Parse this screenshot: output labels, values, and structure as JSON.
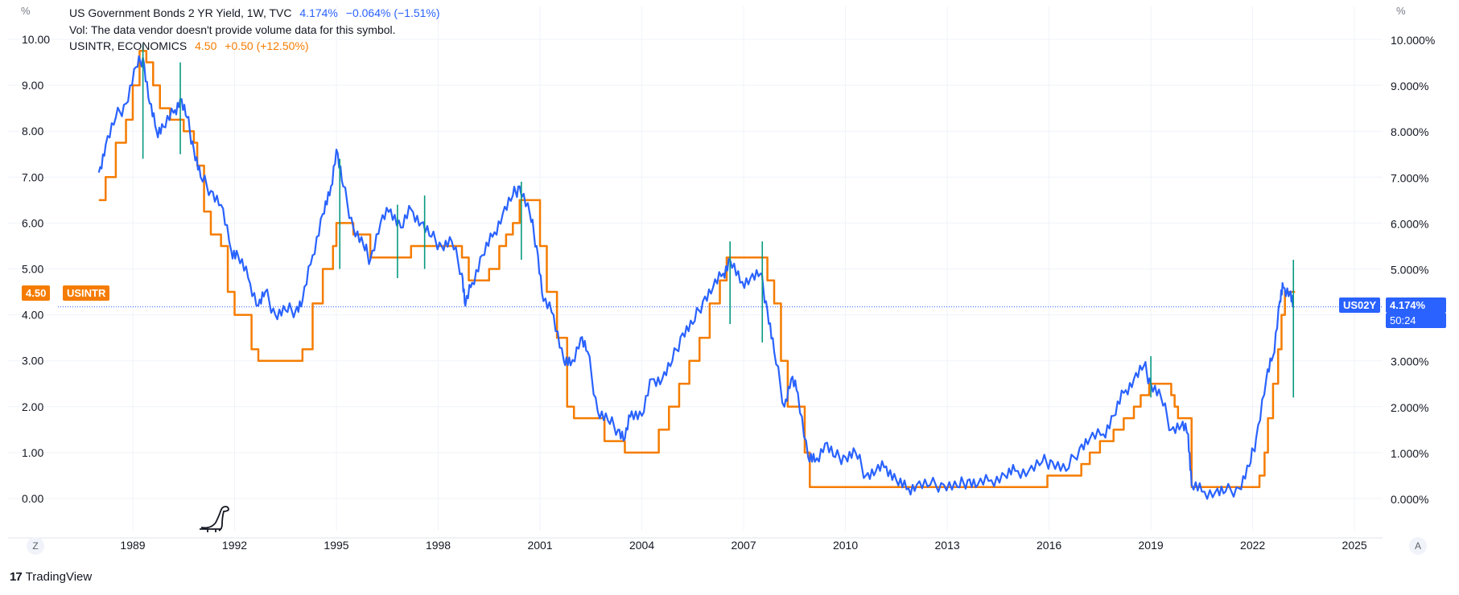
{
  "legend": {
    "line1": {
      "symbol": "US Government Bonds 2 YR Yield, 1W, TVC",
      "value": "4.174%",
      "change": "−0.064% (−1.51%)"
    },
    "line2": {
      "text": "Vol: The data vendor doesn't provide volume data for this symbol."
    },
    "line3": {
      "symbol": "USINTR, ECONOMICS",
      "value": "4.50",
      "change": "+0.50 (+12.50%)"
    }
  },
  "left_axis": {
    "unit": "%",
    "ticks": [
      "10.00",
      "9.00",
      "8.00",
      "7.00",
      "6.00",
      "5.00",
      "4.00",
      "3.00",
      "2.00",
      "1.00",
      "0.00"
    ]
  },
  "right_axis": {
    "unit": "%",
    "ticks": [
      "10.000%",
      "9.000%",
      "8.000%",
      "7.000%",
      "6.000%",
      "5.000%",
      "4.000%",
      "3.000%",
      "2.000%",
      "1.000%",
      "0.000%"
    ]
  },
  "time_axis": {
    "ticks": [
      "1989",
      "1992",
      "1995",
      "1998",
      "2001",
      "2004",
      "2007",
      "2010",
      "2013",
      "2016",
      "2019",
      "2022",
      "2025"
    ]
  },
  "tags": {
    "left_value": "4.50",
    "left_symbol": "USINTR",
    "right_symbol": "US02Y",
    "right_value": "4.174%",
    "right_countdown": "50:24"
  },
  "controls": {
    "zoom_left": "Z",
    "auto_right": "A"
  },
  "brand": "TradingView",
  "colors": {
    "yield": "#2962ff",
    "rate": "#f57c00",
    "volume_bar": "#089981",
    "grid": "#f0f3fa",
    "price_line": "#2962ff"
  },
  "chart_data": {
    "type": "line",
    "xlabel": "",
    "ylabel": "%",
    "ylim": [
      0,
      10
    ],
    "xlim": [
      1986.7,
      2025.4
    ],
    "grid": true,
    "legend_position": "top-left",
    "series": [
      {
        "name": "US Government Bonds 2 YR Yield, 1W, TVC",
        "points": [
          [
            1988.0,
            7.1
          ],
          [
            1988.2,
            7.7
          ],
          [
            1988.5,
            8.3
          ],
          [
            1988.8,
            8.6
          ],
          [
            1989.1,
            9.4
          ],
          [
            1989.3,
            9.6
          ],
          [
            1989.5,
            8.6
          ],
          [
            1989.7,
            8.0
          ],
          [
            1989.9,
            8.1
          ],
          [
            1990.2,
            8.4
          ],
          [
            1990.4,
            8.7
          ],
          [
            1990.6,
            8.3
          ],
          [
            1990.8,
            7.6
          ],
          [
            1991.0,
            7.0
          ],
          [
            1991.3,
            6.7
          ],
          [
            1991.6,
            6.4
          ],
          [
            1991.9,
            5.4
          ],
          [
            1992.1,
            5.3
          ],
          [
            1992.4,
            4.8
          ],
          [
            1992.7,
            4.2
          ],
          [
            1992.9,
            4.5
          ],
          [
            1993.2,
            4.0
          ],
          [
            1993.5,
            4.1
          ],
          [
            1993.8,
            4.1
          ],
          [
            1994.0,
            4.3
          ],
          [
            1994.3,
            5.3
          ],
          [
            1994.6,
            6.2
          ],
          [
            1994.8,
            6.6
          ],
          [
            1995.0,
            7.6
          ],
          [
            1995.2,
            6.8
          ],
          [
            1995.5,
            5.9
          ],
          [
            1995.8,
            5.5
          ],
          [
            1996.0,
            5.2
          ],
          [
            1996.3,
            6.0
          ],
          [
            1996.6,
            6.3
          ],
          [
            1996.9,
            5.9
          ],
          [
            1997.2,
            6.3
          ],
          [
            1997.5,
            6.0
          ],
          [
            1997.8,
            5.7
          ],
          [
            1998.1,
            5.5
          ],
          [
            1998.4,
            5.6
          ],
          [
            1998.7,
            4.9
          ],
          [
            1998.8,
            4.2
          ],
          [
            1999.0,
            4.7
          ],
          [
            1999.3,
            5.3
          ],
          [
            1999.6,
            5.7
          ],
          [
            1999.9,
            6.2
          ],
          [
            2000.2,
            6.6
          ],
          [
            2000.4,
            6.8
          ],
          [
            2000.7,
            6.2
          ],
          [
            2000.9,
            5.5
          ],
          [
            2001.1,
            4.3
          ],
          [
            2001.4,
            4.0
          ],
          [
            2001.7,
            3.0
          ],
          [
            2001.9,
            2.9
          ],
          [
            2002.2,
            3.5
          ],
          [
            2002.4,
            3.2
          ],
          [
            2002.7,
            1.9
          ],
          [
            2003.0,
            1.7
          ],
          [
            2003.3,
            1.5
          ],
          [
            2003.5,
            1.3
          ],
          [
            2003.7,
            1.9
          ],
          [
            2004.0,
            1.8
          ],
          [
            2004.3,
            2.6
          ],
          [
            2004.6,
            2.6
          ],
          [
            2004.9,
            3.0
          ],
          [
            2005.2,
            3.6
          ],
          [
            2005.5,
            3.8
          ],
          [
            2005.8,
            4.3
          ],
          [
            2006.1,
            4.6
          ],
          [
            2006.4,
            4.9
          ],
          [
            2006.6,
            5.2
          ],
          [
            2006.9,
            4.7
          ],
          [
            2007.2,
            4.8
          ],
          [
            2007.5,
            4.9
          ],
          [
            2007.7,
            4.1
          ],
          [
            2007.9,
            3.2
          ],
          [
            2008.2,
            2.0
          ],
          [
            2008.4,
            2.6
          ],
          [
            2008.6,
            2.3
          ],
          [
            2008.9,
            0.9
          ],
          [
            2009.1,
            0.8
          ],
          [
            2009.4,
            1.2
          ],
          [
            2009.7,
            0.9
          ],
          [
            2010.0,
            0.9
          ],
          [
            2010.3,
            1.0
          ],
          [
            2010.6,
            0.5
          ],
          [
            2010.9,
            0.6
          ],
          [
            2011.2,
            0.7
          ],
          [
            2011.5,
            0.4
          ],
          [
            2011.8,
            0.2
          ],
          [
            2012.1,
            0.3
          ],
          [
            2012.5,
            0.3
          ],
          [
            2012.9,
            0.3
          ],
          [
            2013.3,
            0.25
          ],
          [
            2013.6,
            0.4
          ],
          [
            2013.9,
            0.3
          ],
          [
            2014.3,
            0.4
          ],
          [
            2014.7,
            0.5
          ],
          [
            2015.0,
            0.6
          ],
          [
            2015.4,
            0.6
          ],
          [
            2015.8,
            0.8
          ],
          [
            2016.1,
            0.8
          ],
          [
            2016.5,
            0.6
          ],
          [
            2016.9,
            1.1
          ],
          [
            2017.2,
            1.3
          ],
          [
            2017.6,
            1.4
          ],
          [
            2017.9,
            1.8
          ],
          [
            2018.2,
            2.3
          ],
          [
            2018.5,
            2.6
          ],
          [
            2018.8,
            2.9
          ],
          [
            2019.0,
            2.5
          ],
          [
            2019.3,
            2.2
          ],
          [
            2019.6,
            1.5
          ],
          [
            2019.9,
            1.6
          ],
          [
            2020.1,
            1.4
          ],
          [
            2020.2,
            0.3
          ],
          [
            2020.5,
            0.15
          ],
          [
            2020.9,
            0.14
          ],
          [
            2021.2,
            0.15
          ],
          [
            2021.6,
            0.22
          ],
          [
            2021.9,
            0.7
          ],
          [
            2022.1,
            1.3
          ],
          [
            2022.4,
            2.6
          ],
          [
            2022.6,
            3.1
          ],
          [
            2022.8,
            4.3
          ],
          [
            2022.9,
            4.6
          ],
          [
            2023.1,
            4.5
          ],
          [
            2023.2,
            4.17
          ]
        ]
      },
      {
        "name": "USINTR, ECONOMICS",
        "points": [
          [
            1988.0,
            6.5
          ],
          [
            1988.2,
            7.0
          ],
          [
            1988.5,
            7.75
          ],
          [
            1988.8,
            8.25
          ],
          [
            1989.0,
            9.0
          ],
          [
            1989.2,
            9.75
          ],
          [
            1989.4,
            9.5
          ],
          [
            1989.6,
            9.0
          ],
          [
            1989.8,
            8.5
          ],
          [
            1990.1,
            8.25
          ],
          [
            1990.5,
            8.0
          ],
          [
            1990.8,
            7.75
          ],
          [
            1990.9,
            7.25
          ],
          [
            1991.1,
            6.25
          ],
          [
            1991.3,
            5.75
          ],
          [
            1991.6,
            5.5
          ],
          [
            1991.8,
            4.5
          ],
          [
            1992.0,
            4.0
          ],
          [
            1992.5,
            3.25
          ],
          [
            1992.7,
            3.0
          ],
          [
            1994.0,
            3.25
          ],
          [
            1994.3,
            4.25
          ],
          [
            1994.6,
            5.0
          ],
          [
            1994.9,
            5.5
          ],
          [
            1995.0,
            6.0
          ],
          [
            1995.5,
            5.75
          ],
          [
            1996.0,
            5.25
          ],
          [
            1997.2,
            5.5
          ],
          [
            1998.7,
            5.25
          ],
          [
            1998.9,
            4.75
          ],
          [
            1999.5,
            5.0
          ],
          [
            1999.8,
            5.5
          ],
          [
            2000.0,
            5.75
          ],
          [
            2000.2,
            6.0
          ],
          [
            2000.4,
            6.5
          ],
          [
            2001.0,
            5.5
          ],
          [
            2001.2,
            4.5
          ],
          [
            2001.5,
            3.5
          ],
          [
            2001.8,
            2.0
          ],
          [
            2002.0,
            1.75
          ],
          [
            2002.9,
            1.25
          ],
          [
            2003.5,
            1.0
          ],
          [
            2004.5,
            1.5
          ],
          [
            2004.8,
            2.0
          ],
          [
            2005.1,
            2.5
          ],
          [
            2005.4,
            3.0
          ],
          [
            2005.7,
            3.5
          ],
          [
            2006.0,
            4.25
          ],
          [
            2006.3,
            4.75
          ],
          [
            2006.5,
            5.25
          ],
          [
            2007.7,
            4.75
          ],
          [
            2007.9,
            4.25
          ],
          [
            2008.1,
            3.0
          ],
          [
            2008.3,
            2.0
          ],
          [
            2008.8,
            1.0
          ],
          [
            2008.95,
            0.25
          ],
          [
            2015.95,
            0.5
          ],
          [
            2016.95,
            0.75
          ],
          [
            2017.2,
            1.0
          ],
          [
            2017.5,
            1.25
          ],
          [
            2017.9,
            1.5
          ],
          [
            2018.2,
            1.75
          ],
          [
            2018.5,
            2.0
          ],
          [
            2018.7,
            2.25
          ],
          [
            2018.95,
            2.5
          ],
          [
            2019.6,
            2.25
          ],
          [
            2019.7,
            2.0
          ],
          [
            2019.8,
            1.75
          ],
          [
            2020.2,
            0.25
          ],
          [
            2022.2,
            0.5
          ],
          [
            2022.35,
            1.0
          ],
          [
            2022.45,
            1.75
          ],
          [
            2022.6,
            2.5
          ],
          [
            2022.75,
            3.25
          ],
          [
            2022.85,
            4.0
          ],
          [
            2022.95,
            4.5
          ]
        ]
      }
    ],
    "vertical_marks": [
      {
        "x": 1989.3,
        "low": 7.4,
        "high": 9.9
      },
      {
        "x": 1990.4,
        "low": 7.5,
        "high": 9.5
      },
      {
        "x": 1995.1,
        "low": 5.0,
        "high": 7.4
      },
      {
        "x": 1996.8,
        "low": 4.8,
        "high": 6.4
      },
      {
        "x": 1997.6,
        "low": 5.0,
        "high": 6.6
      },
      {
        "x": 2000.45,
        "low": 5.2,
        "high": 6.9
      },
      {
        "x": 2006.6,
        "low": 3.8,
        "high": 5.6
      },
      {
        "x": 2007.55,
        "low": 3.4,
        "high": 5.6
      },
      {
        "x": 2019.0,
        "low": 2.2,
        "high": 3.1
      },
      {
        "x": 2023.2,
        "low": 2.2,
        "high": 5.2
      }
    ]
  }
}
